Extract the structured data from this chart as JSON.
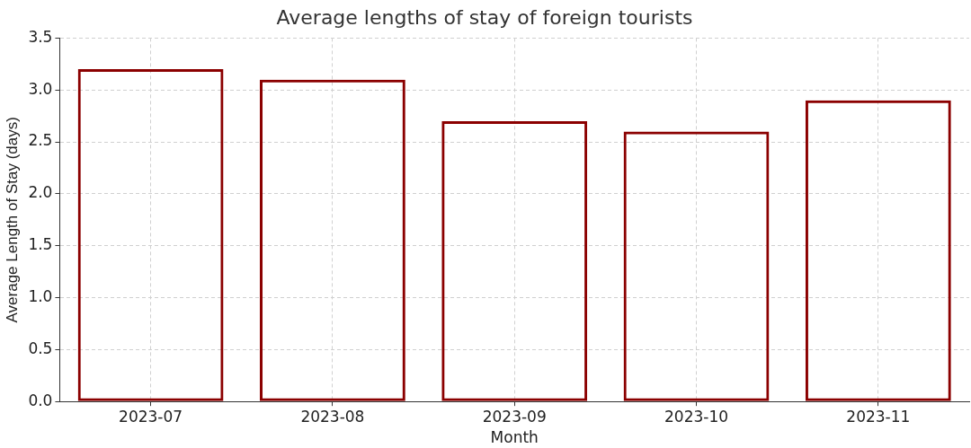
{
  "chart_data": {
    "type": "bar",
    "title": "Average lengths of stay of foreign tourists",
    "xlabel": "Month",
    "ylabel": "Average Length of Stay (days)",
    "categories": [
      "2023-07",
      "2023-08",
      "2023-09",
      "2023-10",
      "2023-11"
    ],
    "values": [
      3.2,
      3.1,
      2.7,
      2.6,
      2.9
    ],
    "color": "#8b0000",
    "ylim": [
      0,
      3.5
    ],
    "yticks": [
      {
        "value": 0,
        "label": "0.0"
      },
      0.5,
      {
        "value": 1,
        "label": "1.0"
      },
      1.5,
      {
        "value": 2,
        "label": "2.0"
      },
      2.5,
      {
        "value": 3,
        "label": "3.0"
      },
      3.5
    ],
    "grid": true,
    "legend": false
  }
}
